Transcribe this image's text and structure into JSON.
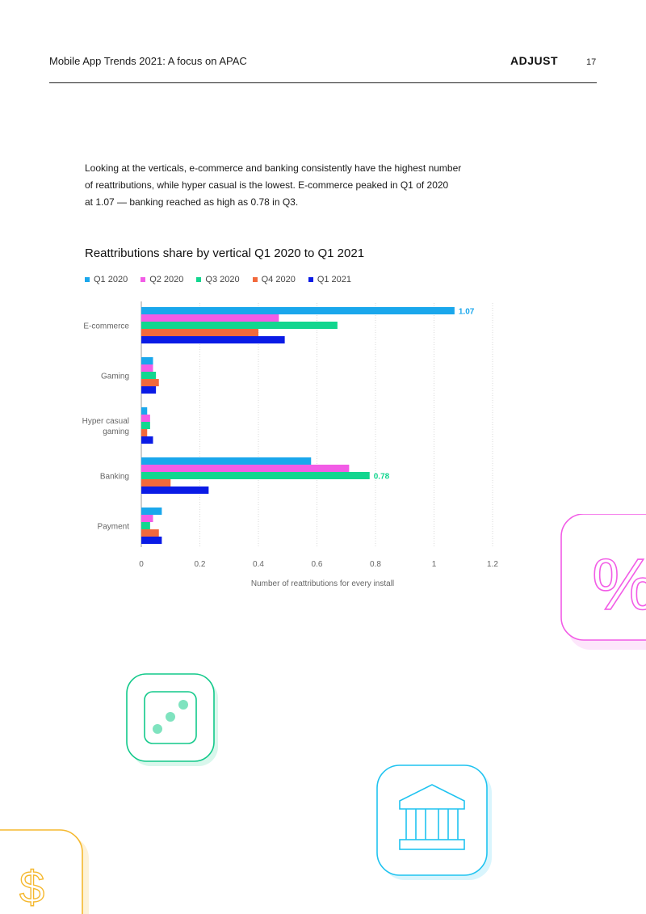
{
  "header": {
    "title": "Mobile App Trends 2021: A focus on APAC",
    "logo_text": "ADJUST",
    "page_number": "17"
  },
  "intro": {
    "lines": [
      "Looking at the verticals, e-commerce and banking consistently have the highest number",
      "of reattributions, while hyper casual is the lowest. E-commerce peaked in Q1 of 2020",
      "at 1.07 — banking reached as high as 0.78 in Q3."
    ]
  },
  "chart_data": {
    "type": "bar",
    "orientation": "horizontal",
    "title": "Reattributions share by vertical Q1 2020 to Q1 2021",
    "xlabel": "Number of reattributions for every install",
    "categories": [
      "E-commerce",
      "Gaming",
      "Hyper casual gaming",
      "Banking",
      "Payment"
    ],
    "category_lines": [
      [
        "E-commerce"
      ],
      [
        "Gaming"
      ],
      [
        "Hyper casual",
        "gaming"
      ],
      [
        "Banking"
      ],
      [
        "Payment"
      ]
    ],
    "xlim": [
      0,
      1.2
    ],
    "xticks": [
      "0",
      "0.2",
      "0.4",
      "0.6",
      "0.8",
      "1",
      "1.2"
    ],
    "legend_position": "top-left",
    "series": [
      {
        "name": "Q1 2020",
        "color": "#1aa7ec",
        "values": [
          1.07,
          0.04,
          0.02,
          0.58,
          0.07
        ]
      },
      {
        "name": "Q2 2020",
        "color": "#f25ce6",
        "values": [
          0.47,
          0.04,
          0.03,
          0.71,
          0.04
        ]
      },
      {
        "name": "Q3 2020",
        "color": "#12d68f",
        "values": [
          0.67,
          0.05,
          0.03,
          0.78,
          0.03
        ]
      },
      {
        "name": "Q4 2020",
        "color": "#f2693c",
        "values": [
          0.4,
          0.06,
          0.02,
          0.1,
          0.06
        ]
      },
      {
        "name": "Q1 2021",
        "color": "#0a1be6",
        "values": [
          0.49,
          0.05,
          0.04,
          0.23,
          0.07
        ]
      }
    ],
    "annotations": [
      {
        "category": "E-commerce",
        "series": "Q1 2020",
        "text": "1.07",
        "color": "#1aa7ec"
      },
      {
        "category": "Banking",
        "series": "Q3 2020",
        "text": "0.78",
        "color": "#12d68f"
      }
    ]
  },
  "decorations": {
    "percent_icon": {
      "glyph": "%",
      "color": "#f25ce6"
    },
    "dice_icon": {
      "color": "#12c98a"
    },
    "bank_icon": {
      "color": "#1fc3f0"
    },
    "dollar_icon": {
      "glyph": "$",
      "color": "#f5b82e"
    }
  }
}
